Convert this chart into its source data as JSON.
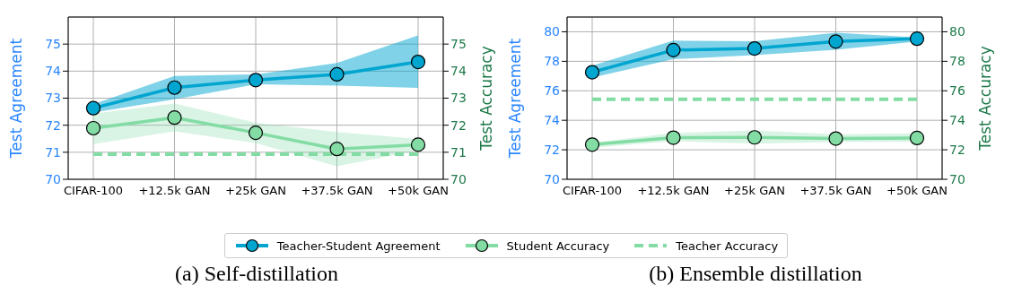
{
  "chart_data": [
    {
      "type": "line",
      "title": "(a) Self-distillation",
      "categories": [
        "CIFAR-100",
        "+12.5k GAN",
        "+25k GAN",
        "+37.5k GAN",
        "+50k GAN"
      ],
      "ylabel": "Test Agreement",
      "y2label": "Test Accuracy",
      "ylim": [
        70,
        76
      ],
      "yticks": [
        70,
        71,
        72,
        73,
        74,
        75
      ],
      "y2lim": [
        70,
        76
      ],
      "y2ticks": [
        70,
        71,
        72,
        73,
        74,
        75
      ],
      "grid": true,
      "legend": "bottom",
      "marker": "circle",
      "series": [
        {
          "name": "Teacher-Student Agreement",
          "color": "#00a5d0",
          "values": [
            72.63,
            73.39,
            73.67,
            73.88,
            74.34
          ],
          "lower": [
            72.47,
            72.96,
            73.51,
            73.46,
            73.38
          ],
          "upper": [
            72.78,
            73.82,
            73.88,
            74.3,
            75.32
          ]
        },
        {
          "name": "Student Accuracy",
          "color": "#82dca4",
          "values": [
            71.89,
            72.28,
            71.72,
            71.12,
            71.28
          ],
          "lower": [
            71.3,
            71.77,
            71.34,
            70.48,
            71.07
          ],
          "upper": [
            72.43,
            72.8,
            72.09,
            71.75,
            71.49
          ]
        },
        {
          "name": "Teacher Accuracy",
          "color": "#82dca4",
          "marker": "none",
          "line_style": "dashed",
          "values": [
            70.93,
            70.93,
            70.93,
            70.93,
            70.93
          ]
        }
      ]
    },
    {
      "type": "line",
      "title": "(b) Ensemble distillation",
      "categories": [
        "CIFAR-100",
        "+12.5k GAN",
        "+25k GAN",
        "+37.5k GAN",
        "+50k GAN"
      ],
      "ylabel": "Test Agreement",
      "y2label": "Test Accuracy",
      "ylim": [
        70,
        81
      ],
      "yticks": [
        70,
        72,
        74,
        76,
        78,
        80
      ],
      "y2lim": [
        70,
        81
      ],
      "y2ticks": [
        70,
        72,
        74,
        76,
        78,
        80
      ],
      "grid": true,
      "marker": "circle",
      "series": [
        {
          "color": "#00a5d0",
          "values": [
            77.26,
            78.76,
            78.87,
            79.34,
            79.53
          ],
          "lower": [
            76.9,
            78.14,
            78.42,
            78.78,
            79.34
          ],
          "upper": [
            77.7,
            79.4,
            79.36,
            79.94,
            79.62
          ]
        },
        {
          "color": "#82dca4",
          "values": [
            72.35,
            72.82,
            72.84,
            72.76,
            72.8
          ],
          "lower": [
            72.14,
            72.59,
            72.41,
            72.52,
            72.54
          ],
          "upper": [
            72.48,
            73.14,
            73.31,
            73.06,
            73.12
          ]
        },
        {
          "color": "#82dca4",
          "marker": "none",
          "line_style": "dashed",
          "values": [
            75.43,
            75.43,
            75.43,
            75.43,
            75.43
          ]
        }
      ]
    }
  ]
}
